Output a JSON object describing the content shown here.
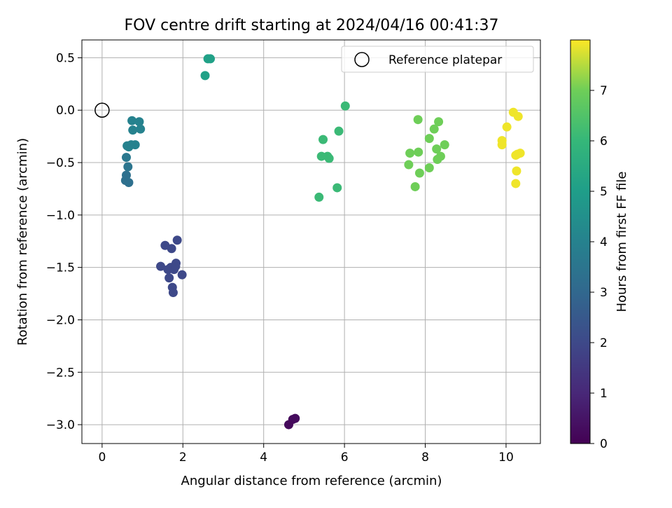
{
  "chart_data": {
    "type": "scatter",
    "title": "FOV centre drift starting at 2024/04/16 00:41:37",
    "xlabel": "Angular distance from reference (arcmin)",
    "ylabel": "Rotation from reference (arcmin)",
    "xlim": [
      -0.5,
      10.85
    ],
    "ylim": [
      -3.18,
      0.67
    ],
    "xticks": [
      0,
      2,
      4,
      6,
      8,
      10
    ],
    "xtick_labels": [
      "0",
      "2",
      "4",
      "6",
      "8",
      "10"
    ],
    "yticks": [
      0.5,
      0.0,
      -0.5,
      -1.0,
      -1.5,
      -2.0,
      -2.5,
      -3.0
    ],
    "ytick_labels": [
      "0.5",
      "0.0",
      "−0.5",
      "−1.0",
      "−1.5",
      "−2.0",
      "−2.5",
      "−3.0"
    ],
    "grid": true,
    "legend": {
      "position": "top-right",
      "label": "Reference platepar"
    },
    "reference_point": {
      "x": 0.0,
      "y": 0.0
    },
    "colorbar": {
      "label": "Hours from first FF file",
      "colormap": "viridis",
      "min": 0,
      "max": 8,
      "ticks": [
        0,
        1,
        2,
        3,
        4,
        5,
        6,
        7
      ],
      "tick_labels": [
        "0",
        "1",
        "2",
        "3",
        "4",
        "5",
        "6",
        "7"
      ]
    },
    "points": [
      {
        "x": 4.62,
        "y": -3.0,
        "c": 0.2
      },
      {
        "x": 4.72,
        "y": -2.95,
        "c": 0.2
      },
      {
        "x": 4.78,
        "y": -2.94,
        "c": 0.25
      },
      {
        "x": 1.56,
        "y": -1.29,
        "c": 2.0
      },
      {
        "x": 1.72,
        "y": -1.32,
        "c": 2.0
      },
      {
        "x": 1.86,
        "y": -1.24,
        "c": 2.0
      },
      {
        "x": 1.45,
        "y": -1.49,
        "c": 2.0
      },
      {
        "x": 1.63,
        "y": -1.52,
        "c": 2.0
      },
      {
        "x": 1.7,
        "y": -1.5,
        "c": 2.0
      },
      {
        "x": 1.78,
        "y": -1.52,
        "c": 2.0
      },
      {
        "x": 1.83,
        "y": -1.46,
        "c": 2.0
      },
      {
        "x": 1.82,
        "y": -1.49,
        "c": 2.0
      },
      {
        "x": 1.98,
        "y": -1.57,
        "c": 2.0
      },
      {
        "x": 1.66,
        "y": -1.6,
        "c": 2.0
      },
      {
        "x": 1.74,
        "y": -1.69,
        "c": 2.0
      },
      {
        "x": 1.76,
        "y": -1.74,
        "c": 2.0
      },
      {
        "x": 0.6,
        "y": -0.62,
        "c": 3.3
      },
      {
        "x": 0.58,
        "y": -0.67,
        "c": 3.3
      },
      {
        "x": 0.66,
        "y": -0.69,
        "c": 3.3
      },
      {
        "x": 0.64,
        "y": -0.54,
        "c": 3.5
      },
      {
        "x": 0.6,
        "y": -0.45,
        "c": 3.6
      },
      {
        "x": 0.62,
        "y": -0.34,
        "c": 4.0
      },
      {
        "x": 0.66,
        "y": -0.35,
        "c": 4.0
      },
      {
        "x": 0.72,
        "y": -0.33,
        "c": 4.0
      },
      {
        "x": 0.82,
        "y": -0.33,
        "c": 4.0
      },
      {
        "x": 0.76,
        "y": -0.19,
        "c": 4.0
      },
      {
        "x": 0.74,
        "y": -0.1,
        "c": 4.0
      },
      {
        "x": 0.92,
        "y": -0.11,
        "c": 4.0
      },
      {
        "x": 0.95,
        "y": -0.18,
        "c": 4.0
      },
      {
        "x": 2.55,
        "y": 0.33,
        "c": 5.1
      },
      {
        "x": 2.62,
        "y": 0.49,
        "c": 5.1
      },
      {
        "x": 2.68,
        "y": 0.49,
        "c": 5.1
      },
      {
        "x": 6.02,
        "y": 0.04,
        "c": 6.1
      },
      {
        "x": 5.86,
        "y": -0.2,
        "c": 6.1
      },
      {
        "x": 5.47,
        "y": -0.28,
        "c": 6.1
      },
      {
        "x": 5.43,
        "y": -0.44,
        "c": 6.1
      },
      {
        "x": 5.58,
        "y": -0.44,
        "c": 6.1
      },
      {
        "x": 5.62,
        "y": -0.46,
        "c": 6.1
      },
      {
        "x": 5.82,
        "y": -0.74,
        "c": 6.1
      },
      {
        "x": 5.37,
        "y": -0.83,
        "c": 6.1
      },
      {
        "x": 7.82,
        "y": -0.09,
        "c": 7.0
      },
      {
        "x": 8.33,
        "y": -0.11,
        "c": 7.0
      },
      {
        "x": 8.22,
        "y": -0.18,
        "c": 7.0
      },
      {
        "x": 8.1,
        "y": -0.27,
        "c": 7.0
      },
      {
        "x": 8.48,
        "y": -0.33,
        "c": 7.0
      },
      {
        "x": 8.28,
        "y": -0.37,
        "c": 7.0
      },
      {
        "x": 7.62,
        "y": -0.41,
        "c": 7.0
      },
      {
        "x": 7.83,
        "y": -0.4,
        "c": 7.0
      },
      {
        "x": 8.38,
        "y": -0.44,
        "c": 7.0
      },
      {
        "x": 8.3,
        "y": -0.47,
        "c": 7.0
      },
      {
        "x": 7.59,
        "y": -0.52,
        "c": 7.0
      },
      {
        "x": 8.1,
        "y": -0.55,
        "c": 7.0
      },
      {
        "x": 7.86,
        "y": -0.6,
        "c": 7.0
      },
      {
        "x": 7.75,
        "y": -0.73,
        "c": 7.0
      },
      {
        "x": 10.18,
        "y": -0.02,
        "c": 7.9
      },
      {
        "x": 10.3,
        "y": -0.06,
        "c": 7.9
      },
      {
        "x": 10.02,
        "y": -0.16,
        "c": 7.9
      },
      {
        "x": 9.9,
        "y": -0.29,
        "c": 7.9
      },
      {
        "x": 9.9,
        "y": -0.33,
        "c": 7.9
      },
      {
        "x": 10.35,
        "y": -0.41,
        "c": 7.9
      },
      {
        "x": 10.28,
        "y": -0.42,
        "c": 7.9
      },
      {
        "x": 10.24,
        "y": -0.43,
        "c": 7.9
      },
      {
        "x": 10.26,
        "y": -0.58,
        "c": 7.9
      },
      {
        "x": 10.24,
        "y": -0.7,
        "c": 7.9
      }
    ]
  }
}
